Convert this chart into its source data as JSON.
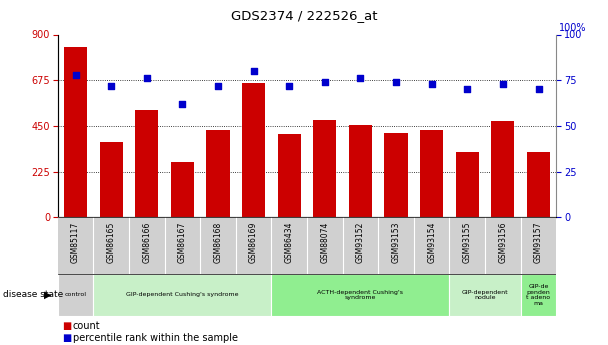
{
  "title": "GDS2374 / 222526_at",
  "samples": [
    "GSM85117",
    "GSM86165",
    "GSM86166",
    "GSM86167",
    "GSM86168",
    "GSM86169",
    "GSM86434",
    "GSM88074",
    "GSM93152",
    "GSM93153",
    "GSM93154",
    "GSM93155",
    "GSM93156",
    "GSM93157"
  ],
  "counts": [
    840,
    370,
    530,
    270,
    430,
    660,
    410,
    480,
    455,
    415,
    430,
    320,
    475,
    320
  ],
  "percentiles": [
    78,
    72,
    76,
    62,
    72,
    80,
    72,
    74,
    76,
    74,
    73,
    70,
    73,
    70
  ],
  "bar_color": "#cc0000",
  "dot_color": "#0000cc",
  "ylim_left": [
    0,
    900
  ],
  "ylim_right": [
    0,
    100
  ],
  "yticks_left": [
    0,
    225,
    450,
    675,
    900
  ],
  "yticks_right": [
    0,
    25,
    50,
    75,
    100
  ],
  "grid_values": [
    225,
    450,
    675
  ],
  "disease_groups": [
    {
      "label": "control",
      "start": 0,
      "end": 1,
      "color": "#d0d0d0"
    },
    {
      "label": "GIP-dependent Cushing's syndrome",
      "start": 1,
      "end": 6,
      "color": "#c8f0c8"
    },
    {
      "label": "ACTH-dependent Cushing's\nsyndrome",
      "start": 6,
      "end": 11,
      "color": "#90ee90"
    },
    {
      "label": "GIP-dependent\nnodule",
      "start": 11,
      "end": 13,
      "color": "#c8f0c8"
    },
    {
      "label": "GIP-de\npenden\nt adeno\nma",
      "start": 13,
      "end": 14,
      "color": "#90ee90"
    }
  ],
  "tick_label_color_left": "#cc0000",
  "tick_label_color_right": "#0000cc",
  "bar_width": 0.65
}
